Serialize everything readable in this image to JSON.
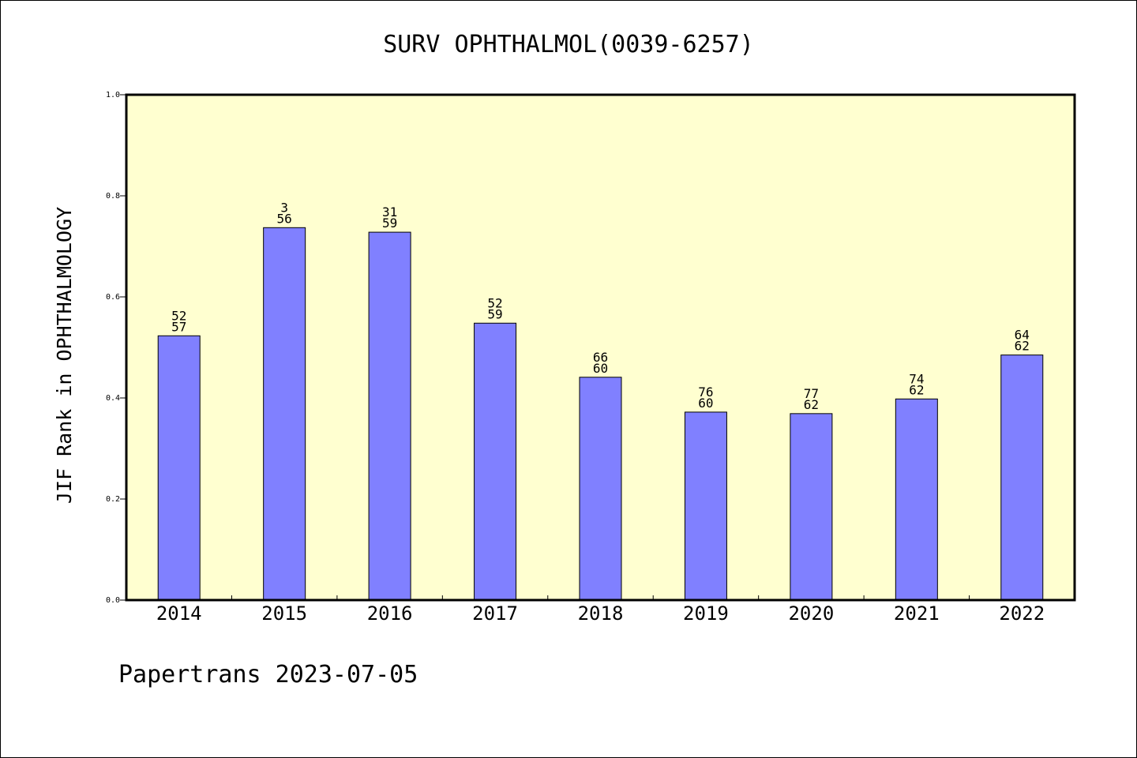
{
  "chart_data": {
    "type": "bar",
    "title": "SURV OPHTHALMOL(0039-6257)",
    "xlabel": "",
    "ylabel": "JIF Rank in OPHTHALMOLOGY",
    "ylim": [
      0,
      1.0
    ],
    "yticks": [
      "0.0",
      "0.2",
      "0.4",
      "0.6",
      "0.8",
      "1.0"
    ],
    "grid": false,
    "legend": "none",
    "categories": [
      "2014",
      "2015",
      "2016",
      "2017",
      "2018",
      "2019",
      "2020",
      "2021",
      "2022"
    ],
    "values": [
      0.523,
      0.737,
      0.728,
      0.548,
      0.441,
      0.372,
      0.369,
      0.398,
      0.485
    ],
    "labels_top": [
      "52",
      "3",
      "31",
      "52",
      "66",
      "76",
      "77",
      "74",
      "64"
    ],
    "labels_bottom": [
      "57",
      "56",
      "59",
      "59",
      "60",
      "60",
      "62",
      "62",
      "62"
    ],
    "colors": {
      "bar": "#8080ff",
      "plot_background": "#ffffd0",
      "axis": "#000000"
    }
  },
  "footer": {
    "text": "Papertrans 2023-07-05"
  }
}
